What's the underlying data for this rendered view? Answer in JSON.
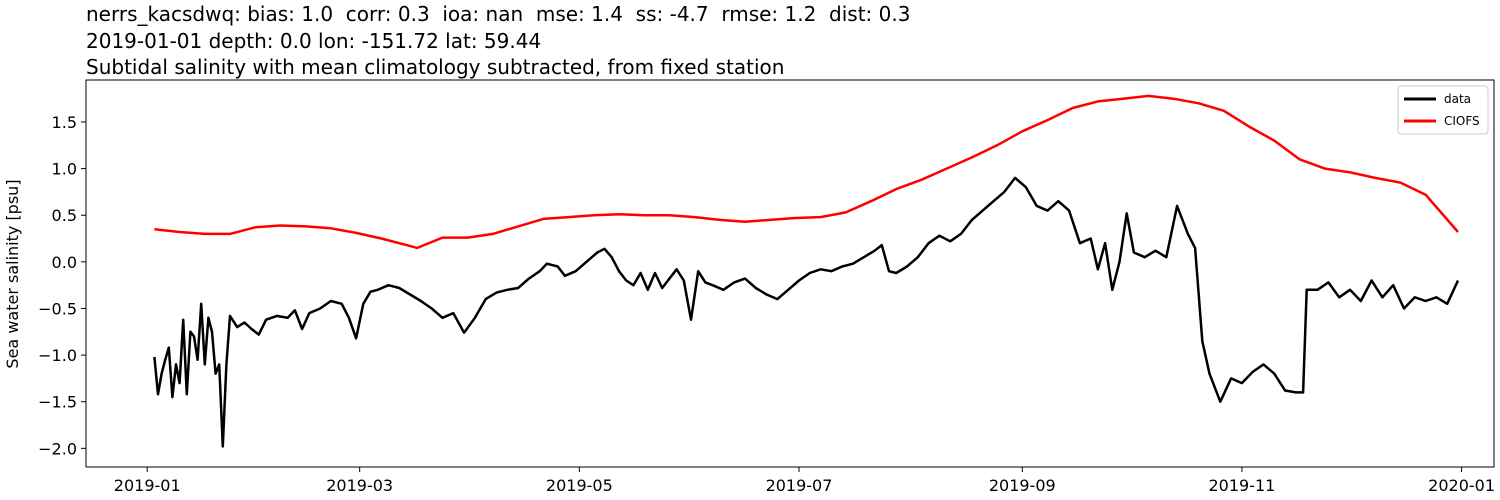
{
  "titles": {
    "line1": "nerrs_kacsdwq: bias: 1.0  corr: 0.3  ioa: nan  mse: 1.4  ss: -4.7  rmse: 1.2  dist: 0.3",
    "line2": "2019-01-01 depth: 0.0 lon: -151.72 lat: 59.44",
    "line3": "Subtidal salinity with mean climatology subtracted, from fixed station"
  },
  "chart_data": {
    "type": "line",
    "xlabel": "",
    "ylabel": "Sea water salinity [psu]",
    "xlim": [
      "2018-12-15",
      "2020-01-10"
    ],
    "ylim": [
      -2.2,
      1.95
    ],
    "x_ticks": [
      "2019-01",
      "2019-03",
      "2019-05",
      "2019-07",
      "2019-09",
      "2019-11",
      "2020-01"
    ],
    "x_tick_labels": [
      "2019-01",
      "2019-03",
      "2019-05",
      "2019-07",
      "2019-09",
      "2019-11",
      "2020-01"
    ],
    "y_ticks": [
      1.5,
      1.0,
      0.5,
      0.0,
      -0.5,
      -1.0,
      -1.5,
      -2.0
    ],
    "y_tick_labels": [
      "1.5",
      "1.0",
      "0.5",
      "0.0",
      "−0.5",
      "−1.0",
      "−1.5",
      "−2.0"
    ],
    "legend_position": "top-right",
    "grid": false,
    "series": [
      {
        "name": "data",
        "color": "#000000",
        "points": [
          [
            "2019-01-03",
            -1.02
          ],
          [
            "2019-01-04",
            -1.42
          ],
          [
            "2019-01-05",
            -1.2
          ],
          [
            "2019-01-06",
            -1.05
          ],
          [
            "2019-01-07",
            -0.92
          ],
          [
            "2019-01-08",
            -1.45
          ],
          [
            "2019-01-09",
            -1.1
          ],
          [
            "2019-01-10",
            -1.3
          ],
          [
            "2019-01-11",
            -0.62
          ],
          [
            "2019-01-12",
            -1.42
          ],
          [
            "2019-01-13",
            -0.75
          ],
          [
            "2019-01-14",
            -0.8
          ],
          [
            "2019-01-15",
            -1.05
          ],
          [
            "2019-01-16",
            -0.45
          ],
          [
            "2019-01-17",
            -1.1
          ],
          [
            "2019-01-18",
            -0.6
          ],
          [
            "2019-01-19",
            -0.75
          ],
          [
            "2019-01-20",
            -1.2
          ],
          [
            "2019-01-21",
            -1.1
          ],
          [
            "2019-01-22",
            -1.98
          ],
          [
            "2019-01-23",
            -1.1
          ],
          [
            "2019-01-24",
            -0.58
          ],
          [
            "2019-01-26",
            -0.7
          ],
          [
            "2019-01-28",
            -0.65
          ],
          [
            "2019-01-30",
            -0.72
          ],
          [
            "2019-02-01",
            -0.78
          ],
          [
            "2019-02-03",
            -0.62
          ],
          [
            "2019-02-06",
            -0.58
          ],
          [
            "2019-02-09",
            -0.6
          ],
          [
            "2019-02-11",
            -0.52
          ],
          [
            "2019-02-13",
            -0.72
          ],
          [
            "2019-02-15",
            -0.55
          ],
          [
            "2019-02-18",
            -0.5
          ],
          [
            "2019-02-21",
            -0.42
          ],
          [
            "2019-02-24",
            -0.45
          ],
          [
            "2019-02-26",
            -0.6
          ],
          [
            "2019-02-28",
            -0.82
          ],
          [
            "2019-03-02",
            -0.45
          ],
          [
            "2019-03-04",
            -0.32
          ],
          [
            "2019-03-06",
            -0.3
          ],
          [
            "2019-03-09",
            -0.25
          ],
          [
            "2019-03-12",
            -0.28
          ],
          [
            "2019-03-15",
            -0.35
          ],
          [
            "2019-03-18",
            -0.42
          ],
          [
            "2019-03-21",
            -0.5
          ],
          [
            "2019-03-24",
            -0.6
          ],
          [
            "2019-03-27",
            -0.55
          ],
          [
            "2019-03-30",
            -0.76
          ],
          [
            "2019-04-02",
            -0.6
          ],
          [
            "2019-04-05",
            -0.4
          ],
          [
            "2019-04-08",
            -0.33
          ],
          [
            "2019-04-11",
            -0.3
          ],
          [
            "2019-04-14",
            -0.28
          ],
          [
            "2019-04-17",
            -0.18
          ],
          [
            "2019-04-20",
            -0.1
          ],
          [
            "2019-04-22",
            -0.02
          ],
          [
            "2019-04-25",
            -0.05
          ],
          [
            "2019-04-27",
            -0.15
          ],
          [
            "2019-04-30",
            -0.1
          ],
          [
            "2019-05-03",
            0.0
          ],
          [
            "2019-05-06",
            0.1
          ],
          [
            "2019-05-08",
            0.14
          ],
          [
            "2019-05-10",
            0.05
          ],
          [
            "2019-05-12",
            -0.1
          ],
          [
            "2019-05-14",
            -0.2
          ],
          [
            "2019-05-16",
            -0.25
          ],
          [
            "2019-05-18",
            -0.12
          ],
          [
            "2019-05-20",
            -0.3
          ],
          [
            "2019-05-22",
            -0.12
          ],
          [
            "2019-05-24",
            -0.28
          ],
          [
            "2019-05-26",
            -0.18
          ],
          [
            "2019-05-28",
            -0.08
          ],
          [
            "2019-05-30",
            -0.2
          ],
          [
            "2019-06-01",
            -0.62
          ],
          [
            "2019-06-03",
            -0.1
          ],
          [
            "2019-06-05",
            -0.22
          ],
          [
            "2019-06-07",
            -0.25
          ],
          [
            "2019-06-10",
            -0.3
          ],
          [
            "2019-06-13",
            -0.22
          ],
          [
            "2019-06-16",
            -0.18
          ],
          [
            "2019-06-19",
            -0.28
          ],
          [
            "2019-06-22",
            -0.35
          ],
          [
            "2019-06-25",
            -0.4
          ],
          [
            "2019-06-28",
            -0.3
          ],
          [
            "2019-07-01",
            -0.2
          ],
          [
            "2019-07-04",
            -0.12
          ],
          [
            "2019-07-07",
            -0.08
          ],
          [
            "2019-07-10",
            -0.1
          ],
          [
            "2019-07-13",
            -0.05
          ],
          [
            "2019-07-16",
            -0.02
          ],
          [
            "2019-07-19",
            0.05
          ],
          [
            "2019-07-22",
            0.12
          ],
          [
            "2019-07-24",
            0.18
          ],
          [
            "2019-07-26",
            -0.1
          ],
          [
            "2019-07-28",
            -0.12
          ],
          [
            "2019-07-31",
            -0.05
          ],
          [
            "2019-08-03",
            0.05
          ],
          [
            "2019-08-06",
            0.2
          ],
          [
            "2019-08-09",
            0.28
          ],
          [
            "2019-08-12",
            0.22
          ],
          [
            "2019-08-15",
            0.3
          ],
          [
            "2019-08-18",
            0.45
          ],
          [
            "2019-08-21",
            0.55
          ],
          [
            "2019-08-24",
            0.65
          ],
          [
            "2019-08-27",
            0.75
          ],
          [
            "2019-08-30",
            0.9
          ],
          [
            "2019-09-02",
            0.8
          ],
          [
            "2019-09-05",
            0.6
          ],
          [
            "2019-09-08",
            0.55
          ],
          [
            "2019-09-11",
            0.65
          ],
          [
            "2019-09-14",
            0.55
          ],
          [
            "2019-09-17",
            0.2
          ],
          [
            "2019-09-20",
            0.25
          ],
          [
            "2019-09-22",
            -0.08
          ],
          [
            "2019-09-24",
            0.2
          ],
          [
            "2019-09-26",
            -0.3
          ],
          [
            "2019-09-28",
            0.0
          ],
          [
            "2019-09-30",
            0.52
          ],
          [
            "2019-10-02",
            0.1
          ],
          [
            "2019-10-05",
            0.05
          ],
          [
            "2019-10-08",
            0.12
          ],
          [
            "2019-10-11",
            0.05
          ],
          [
            "2019-10-14",
            0.6
          ],
          [
            "2019-10-17",
            0.3
          ],
          [
            "2019-10-19",
            0.15
          ],
          [
            "2019-10-21",
            -0.85
          ],
          [
            "2019-10-23",
            -1.2
          ],
          [
            "2019-10-26",
            -1.5
          ],
          [
            "2019-10-29",
            -1.25
          ],
          [
            "2019-11-01",
            -1.3
          ],
          [
            "2019-11-04",
            -1.18
          ],
          [
            "2019-11-07",
            -1.1
          ],
          [
            "2019-11-10",
            -1.2
          ],
          [
            "2019-11-13",
            -1.38
          ],
          [
            "2019-11-16",
            -1.4
          ],
          [
            "2019-11-18",
            -1.4
          ],
          [
            "2019-11-19",
            -0.3
          ],
          [
            "2019-11-22",
            -0.3
          ],
          [
            "2019-11-25",
            -0.22
          ],
          [
            "2019-11-28",
            -0.38
          ],
          [
            "2019-12-01",
            -0.3
          ],
          [
            "2019-12-04",
            -0.42
          ],
          [
            "2019-12-07",
            -0.2
          ],
          [
            "2019-12-10",
            -0.38
          ],
          [
            "2019-12-13",
            -0.25
          ],
          [
            "2019-12-16",
            -0.5
          ],
          [
            "2019-12-19",
            -0.38
          ],
          [
            "2019-12-22",
            -0.42
          ],
          [
            "2019-12-25",
            -0.38
          ],
          [
            "2019-12-28",
            -0.45
          ],
          [
            "2019-12-31",
            -0.2
          ]
        ]
      },
      {
        "name": "CIOFS",
        "color": "#ff0000",
        "points": [
          [
            "2019-01-03",
            0.35
          ],
          [
            "2019-01-10",
            0.32
          ],
          [
            "2019-01-17",
            0.3
          ],
          [
            "2019-01-24",
            0.3
          ],
          [
            "2019-01-31",
            0.37
          ],
          [
            "2019-02-07",
            0.39
          ],
          [
            "2019-02-14",
            0.38
          ],
          [
            "2019-02-21",
            0.36
          ],
          [
            "2019-02-28",
            0.31
          ],
          [
            "2019-03-07",
            0.25
          ],
          [
            "2019-03-14",
            0.18
          ],
          [
            "2019-03-17",
            0.15
          ],
          [
            "2019-03-24",
            0.26
          ],
          [
            "2019-03-31",
            0.26
          ],
          [
            "2019-04-07",
            0.3
          ],
          [
            "2019-04-14",
            0.38
          ],
          [
            "2019-04-21",
            0.46
          ],
          [
            "2019-04-28",
            0.48
          ],
          [
            "2019-05-05",
            0.5
          ],
          [
            "2019-05-12",
            0.51
          ],
          [
            "2019-05-19",
            0.5
          ],
          [
            "2019-05-26",
            0.5
          ],
          [
            "2019-06-02",
            0.48
          ],
          [
            "2019-06-09",
            0.45
          ],
          [
            "2019-06-16",
            0.43
          ],
          [
            "2019-06-23",
            0.45
          ],
          [
            "2019-06-30",
            0.47
          ],
          [
            "2019-07-07",
            0.48
          ],
          [
            "2019-07-14",
            0.53
          ],
          [
            "2019-07-21",
            0.65
          ],
          [
            "2019-07-28",
            0.78
          ],
          [
            "2019-08-04",
            0.88
          ],
          [
            "2019-08-11",
            1.0
          ],
          [
            "2019-08-18",
            1.12
          ],
          [
            "2019-08-25",
            1.25
          ],
          [
            "2019-09-01",
            1.4
          ],
          [
            "2019-09-08",
            1.52
          ],
          [
            "2019-09-15",
            1.65
          ],
          [
            "2019-09-22",
            1.72
          ],
          [
            "2019-09-29",
            1.75
          ],
          [
            "2019-10-06",
            1.78
          ],
          [
            "2019-10-13",
            1.75
          ],
          [
            "2019-10-20",
            1.7
          ],
          [
            "2019-10-27",
            1.62
          ],
          [
            "2019-11-03",
            1.45
          ],
          [
            "2019-11-10",
            1.3
          ],
          [
            "2019-11-17",
            1.1
          ],
          [
            "2019-11-24",
            1.0
          ],
          [
            "2019-12-01",
            0.96
          ],
          [
            "2019-12-08",
            0.9
          ],
          [
            "2019-12-15",
            0.85
          ],
          [
            "2019-12-22",
            0.72
          ],
          [
            "2019-12-31",
            0.32
          ]
        ]
      }
    ]
  }
}
